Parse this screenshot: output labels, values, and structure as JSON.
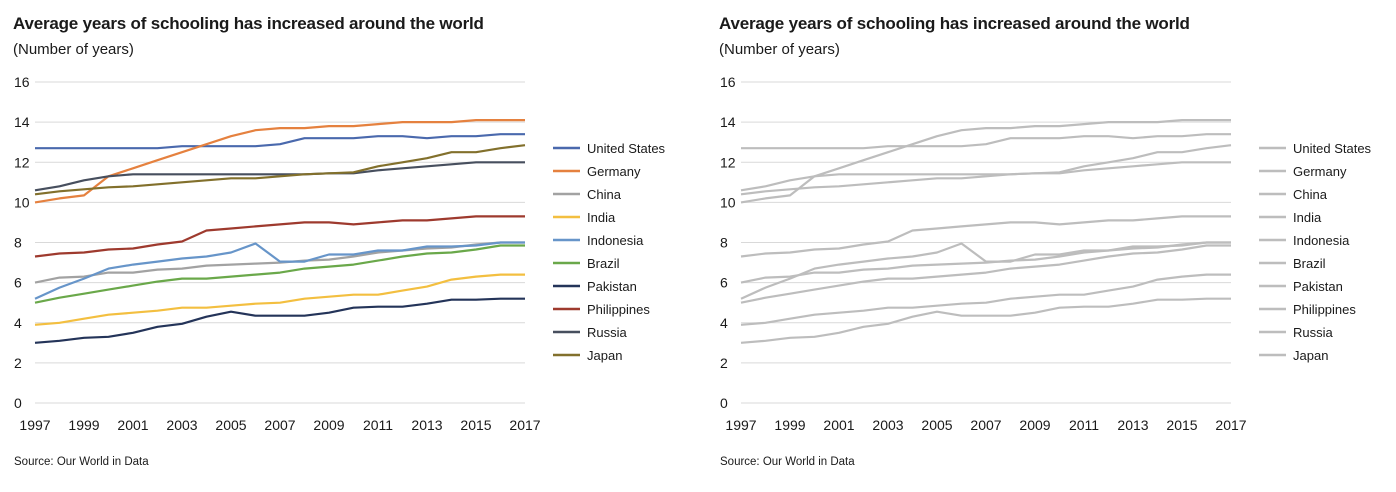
{
  "panels": [
    {
      "title": "Average years of schooling has increased around the world",
      "subtitle": "(Number of years)",
      "source": "Source: Our World in Data",
      "mode": "color"
    },
    {
      "title": "Average years of schooling has increased around the world",
      "subtitle": "(Number of years)",
      "source": "Source: Our World in Data",
      "mode": "gray"
    }
  ],
  "colors": {
    "gray_line": "#bdbdbd",
    "grid": "#d9d9d9"
  },
  "chart_data": {
    "type": "line",
    "x": [
      1997,
      1998,
      1999,
      2000,
      2001,
      2002,
      2003,
      2004,
      2005,
      2006,
      2007,
      2008,
      2009,
      2010,
      2011,
      2012,
      2013,
      2014,
      2015,
      2016,
      2017
    ],
    "x_tick_labels": [
      "1997",
      "1999",
      "2001",
      "2003",
      "2005",
      "2007",
      "2009",
      "2011",
      "2013",
      "2015",
      "2017"
    ],
    "y_tick_labels": [
      "0",
      "2",
      "4",
      "6",
      "8",
      "10",
      "12",
      "14",
      "16"
    ],
    "ylim": [
      0,
      16
    ],
    "grid": true,
    "legend_position": "right",
    "series": [
      {
        "name": "United States",
        "color": "#4a69ad",
        "values": [
          12.7,
          12.7,
          12.7,
          12.7,
          12.7,
          12.7,
          12.8,
          12.8,
          12.8,
          12.8,
          12.9,
          13.2,
          13.2,
          13.2,
          13.3,
          13.3,
          13.2,
          13.3,
          13.3,
          13.4,
          13.4
        ]
      },
      {
        "name": "Germany",
        "color": "#e5813f",
        "values": [
          10.0,
          10.2,
          10.35,
          11.3,
          11.7,
          12.1,
          12.5,
          12.9,
          13.3,
          13.6,
          13.7,
          13.7,
          13.8,
          13.8,
          13.9,
          14.0,
          14.0,
          14.0,
          14.1,
          14.1,
          14.1
        ]
      },
      {
        "name": "China",
        "color": "#a2a2a2",
        "values": [
          6.0,
          6.25,
          6.3,
          6.5,
          6.5,
          6.65,
          6.7,
          6.85,
          6.9,
          6.95,
          7.0,
          7.1,
          7.15,
          7.3,
          7.5,
          7.6,
          7.7,
          7.75,
          7.9,
          8.0,
          8.0
        ]
      },
      {
        "name": "India",
        "color": "#f3bf40",
        "values": [
          3.9,
          4.0,
          4.2,
          4.4,
          4.5,
          4.6,
          4.75,
          4.75,
          4.85,
          4.95,
          5.0,
          5.2,
          5.3,
          5.4,
          5.4,
          5.6,
          5.8,
          6.15,
          6.3,
          6.4,
          6.4
        ]
      },
      {
        "name": "Indonesia",
        "color": "#6795c9",
        "values": [
          5.2,
          5.75,
          6.2,
          6.7,
          6.9,
          7.05,
          7.2,
          7.3,
          7.5,
          7.95,
          7.05,
          7.05,
          7.4,
          7.4,
          7.6,
          7.6,
          7.8,
          7.8,
          7.85,
          8.0,
          8.0
        ]
      },
      {
        "name": "Brazil",
        "color": "#6aa84a",
        "values": [
          5.0,
          5.25,
          5.45,
          5.65,
          5.85,
          6.05,
          6.2,
          6.2,
          6.3,
          6.4,
          6.5,
          6.7,
          6.8,
          6.9,
          7.1,
          7.3,
          7.45,
          7.5,
          7.65,
          7.85,
          7.85
        ]
      },
      {
        "name": "Pakistan",
        "color": "#243459",
        "values": [
          3.0,
          3.1,
          3.25,
          3.3,
          3.5,
          3.8,
          3.95,
          4.3,
          4.55,
          4.35,
          4.35,
          4.35,
          4.5,
          4.75,
          4.8,
          4.8,
          4.95,
          5.15,
          5.15,
          5.2,
          5.2
        ]
      },
      {
        "name": "Philippines",
        "color": "#9e3a2e",
        "values": [
          7.3,
          7.45,
          7.5,
          7.65,
          7.7,
          7.9,
          8.05,
          8.6,
          8.7,
          8.8,
          8.9,
          9.0,
          9.0,
          8.9,
          9.0,
          9.1,
          9.1,
          9.2,
          9.3,
          9.3,
          9.3
        ]
      },
      {
        "name": "Russia",
        "color": "#474f5e",
        "values": [
          10.6,
          10.8,
          11.1,
          11.3,
          11.4,
          11.4,
          11.4,
          11.4,
          11.4,
          11.4,
          11.4,
          11.4,
          11.45,
          11.45,
          11.6,
          11.7,
          11.8,
          11.9,
          12.0,
          12.0,
          12.0
        ]
      },
      {
        "name": "Japan",
        "color": "#82702c",
        "values": [
          10.4,
          10.55,
          10.65,
          10.75,
          10.8,
          10.9,
          11.0,
          11.1,
          11.2,
          11.2,
          11.3,
          11.4,
          11.45,
          11.5,
          11.8,
          12.0,
          12.2,
          12.5,
          12.5,
          12.7,
          12.85
        ]
      }
    ]
  }
}
